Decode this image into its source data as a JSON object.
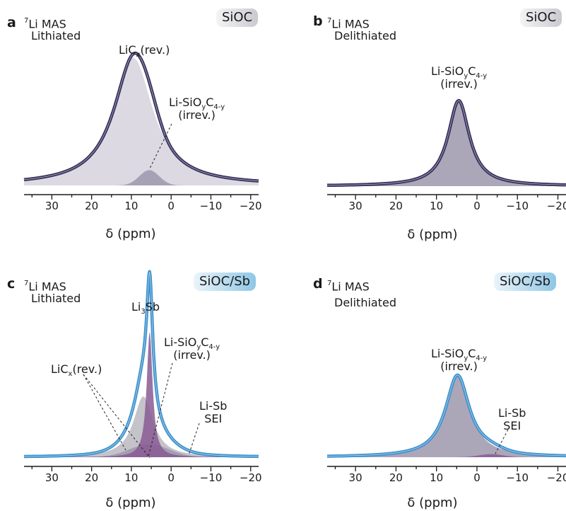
{
  "panels": [
    {
      "id": "a",
      "nucleus_mass": "7",
      "nucleus_rest": "Li MAS",
      "state": "Lithiated",
      "badge": "SiOC",
      "badge_style": "gray",
      "annotations": [
        {
          "main": "LiC",
          "sub": "x",
          "tail": "(rev.)",
          "line2": ""
        },
        {
          "main": "Li-SiO",
          "sub": "y",
          "main2": "C",
          "sub2": "4-y",
          "line2": "(irrev.)"
        }
      ]
    },
    {
      "id": "b",
      "nucleus_mass": "7",
      "nucleus_rest": "Li MAS",
      "state": "Delithiated",
      "badge": "SiOC",
      "badge_style": "gray",
      "annotations": [
        {
          "main": "Li-SiO",
          "sub": "y",
          "main2": "C",
          "sub2": "4-y",
          "line2": "(irrev.)"
        }
      ]
    },
    {
      "id": "c",
      "nucleus_mass": "7",
      "nucleus_rest": "Li MAS",
      "state": "Lithiated",
      "badge": "SiOC/Sb",
      "badge_style": "blue",
      "annotations": [
        {
          "main": "Li",
          "sub": "3",
          "tail": "Sb",
          "line2": ""
        },
        {
          "main": "Li-SiO",
          "sub": "y",
          "main2": "C",
          "sub2": "4-y",
          "line2": "(irrev.)"
        },
        {
          "main": "LiC",
          "sub": "x",
          "tail": "(rev.)",
          "line2": ""
        },
        {
          "main": "Li-Sb",
          "line2": "SEI"
        }
      ]
    },
    {
      "id": "d",
      "nucleus_mass": "7",
      "nucleus_rest": "Li MAS",
      "state": "Delithiated",
      "badge": "SiOC/Sb",
      "badge_style": "blue",
      "annotations": [
        {
          "main": "Li-SiO",
          "sub": "y",
          "main2": "C",
          "sub2": "4-y",
          "line2": "(irrev.)"
        },
        {
          "main": "Li-Sb",
          "line2": "SEI"
        }
      ]
    }
  ],
  "colors": {
    "envelope_dark": "#35305a",
    "envelope_blue": "#3d93cf",
    "fill_light": "#d6d2de",
    "fill_mid": "#9e97ad",
    "fill_purple": "#8a5a93",
    "fill_gray": "#b9b8bf"
  },
  "chart_data": [
    {
      "panel": "a",
      "type": "line",
      "xlabel": "δ (ppm)",
      "xlim": [
        37,
        -22
      ],
      "x_ticks": [
        "30",
        "20",
        "10",
        "0",
        "−10",
        "−20"
      ],
      "x_tick_values": [
        30,
        20,
        10,
        0,
        -10,
        -20
      ],
      "series": [
        {
          "kind": "envelope",
          "components": [
            {
              "center": 9.5,
              "width": 6.0,
              "height": 1.0,
              "shape": "lorentzian"
            },
            {
              "center": 5.5,
              "width": 2.5,
              "height": 0.12,
              "shape": "gaussian"
            }
          ]
        },
        {
          "kind": "fill",
          "components": [
            {
              "center": 9.5,
              "width": 6.0,
              "height": 1.0,
              "shape": "lorentzian"
            }
          ]
        },
        {
          "kind": "fill",
          "components": [
            {
              "center": 5.5,
              "width": 2.5,
              "height": 0.12,
              "shape": "gaussian"
            }
          ]
        }
      ]
    },
    {
      "panel": "b",
      "type": "line",
      "xlabel": "δ (ppm)",
      "xlim": [
        37,
        -22
      ],
      "x_ticks": [
        "30",
        "20",
        "10",
        "0",
        "−10",
        "−20"
      ],
      "x_tick_values": [
        30,
        20,
        10,
        0,
        -10,
        -20
      ],
      "series": [
        {
          "kind": "envelope",
          "components": [
            {
              "center": 4.5,
              "width": 3.2,
              "height": 0.93,
              "shape": "lorentzian"
            }
          ]
        },
        {
          "kind": "fill",
          "components": [
            {
              "center": 4.5,
              "width": 3.2,
              "height": 0.93,
              "shape": "lorentzian"
            }
          ]
        }
      ]
    },
    {
      "panel": "c",
      "type": "line",
      "xlabel": "δ (ppm)",
      "xlim": [
        37,
        -22
      ],
      "x_ticks": [
        "30",
        "20",
        "10",
        "0",
        "−10",
        "−20"
      ],
      "x_tick_values": [
        30,
        20,
        10,
        0,
        -10,
        -20
      ],
      "series": [
        {
          "kind": "envelope",
          "components": [
            {
              "center": 5.4,
              "width": 0.9,
              "height": 0.68,
              "shape": "lorentzian"
            },
            {
              "center": 7.0,
              "width": 3.0,
              "height": 0.33,
              "shape": "lorentzian"
            },
            {
              "center": 5.5,
              "width": 5.0,
              "height": 0.07,
              "shape": "gaussian"
            }
          ]
        },
        {
          "kind": "fill",
          "components": [
            {
              "center": 7.0,
              "width": 3.0,
              "height": 0.33,
              "shape": "lorentzian"
            }
          ]
        },
        {
          "kind": "fill",
          "components": [
            {
              "center": 5.5,
              "width": 5.0,
              "height": 0.07,
              "shape": "gaussian"
            }
          ]
        },
        {
          "kind": "fill",
          "components": [
            {
              "center": 5.4,
              "width": 0.9,
              "height": 0.68,
              "shape": "lorentzian"
            }
          ]
        }
      ]
    },
    {
      "panel": "d",
      "type": "line",
      "xlabel": "δ (ppm)",
      "xlim": [
        37,
        -22
      ],
      "x_ticks": [
        "30",
        "20",
        "10",
        "0",
        "−10",
        "−20"
      ],
      "x_tick_values": [
        30,
        20,
        10,
        0,
        -10,
        -20
      ],
      "series": [
        {
          "kind": "envelope",
          "components": [
            {
              "center": 4.8,
              "width": 3.6,
              "height": 0.8,
              "shape": "lorentzian"
            },
            {
              "center": -3.5,
              "width": 3.0,
              "height": 0.03,
              "shape": "gaussian"
            }
          ]
        },
        {
          "kind": "fill",
          "components": [
            {
              "center": 4.8,
              "width": 3.6,
              "height": 0.8,
              "shape": "lorentzian"
            }
          ]
        },
        {
          "kind": "fill",
          "components": [
            {
              "center": -3.5,
              "width": 3.0,
              "height": 0.03,
              "shape": "gaussian"
            }
          ]
        }
      ]
    }
  ]
}
